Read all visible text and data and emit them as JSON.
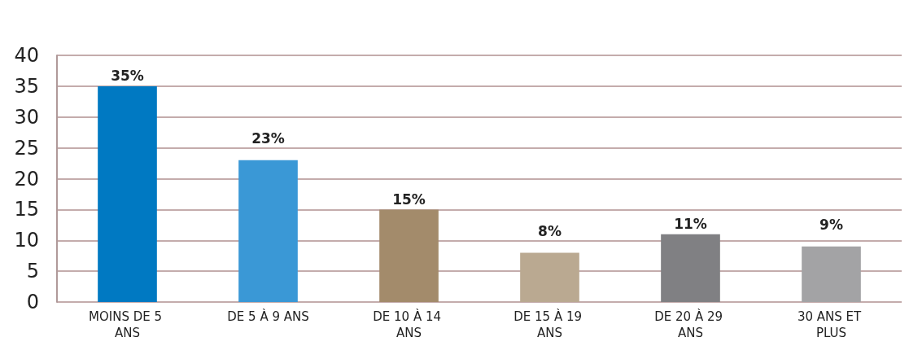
{
  "chart_data": {
    "type": "bar",
    "categories": [
      "MOINS DE 5 ANS",
      "DE 5 À 9 ANS",
      "DE 10 À 14 ANS",
      "DE 15 À 19 ANS",
      "DE 20 À 29 ANS",
      "30 ANS ET PLUS"
    ],
    "values": [
      35,
      23,
      15,
      8,
      11,
      9
    ],
    "value_labels": [
      "35%",
      "23%",
      "15%",
      "8%",
      "11%",
      "9%"
    ],
    "colors": [
      "#0079c2",
      "#3a98d6",
      "#a38b6b",
      "#baa991",
      "#808083",
      "#a3a3a5"
    ],
    "ylim": [
      0,
      40
    ],
    "yticks": [
      0,
      5,
      10,
      15,
      20,
      25,
      30,
      35,
      40
    ],
    "grid": "y"
  }
}
